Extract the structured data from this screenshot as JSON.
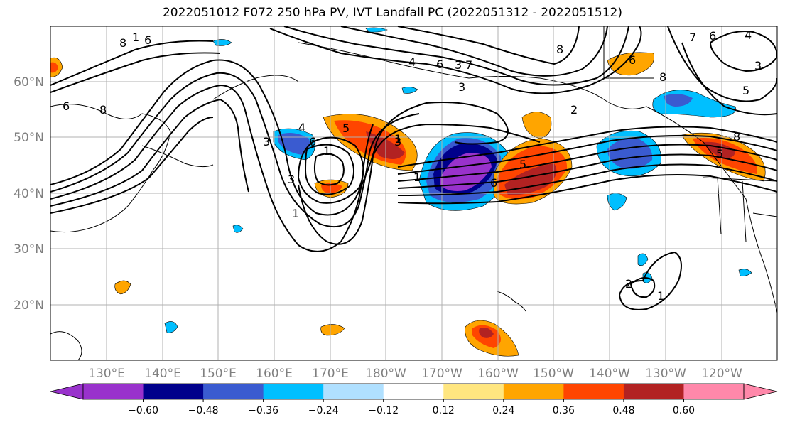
{
  "title": "2022051012 F072 250 hPa PV, IVT Landfall PC (2022051312 - 2022051512)",
  "lat_labels": [
    "60°N",
    "50°N",
    "40°N",
    "30°N",
    "20°N"
  ],
  "lon_labels": [
    "130°E",
    "140°E",
    "150°E",
    "160°E",
    "170°E",
    "180°W",
    "170°W",
    "160°W",
    "150°W",
    "140°W",
    "130°W",
    "120°W"
  ],
  "colorbar": {
    "ticks": [
      "-0.60",
      "-0.48",
      "-0.36",
      "-0.24",
      "-0.12",
      "0.12",
      "0.24",
      "0.36",
      "0.48",
      "0.60"
    ],
    "colors": [
      "#9932cc",
      "#00008b",
      "#3a5bd0",
      "#00bfff",
      "#b0e0ff",
      "#ffffff",
      "#ffe680",
      "#ffa500",
      "#ff4500",
      "#b22222",
      "#ff88aa"
    ]
  },
  "contour_labels": [
    "8",
    "6",
    "1",
    "6",
    "8",
    "3",
    "4",
    "6",
    "1",
    "3",
    "5",
    "1",
    "6",
    "7",
    "3",
    "4",
    "6",
    "3",
    "2",
    "5",
    "6",
    "8",
    "5",
    "8",
    "7",
    "3",
    "6",
    "4",
    "8",
    "5",
    "2",
    "1",
    "1",
    "3",
    "1"
  ]
}
